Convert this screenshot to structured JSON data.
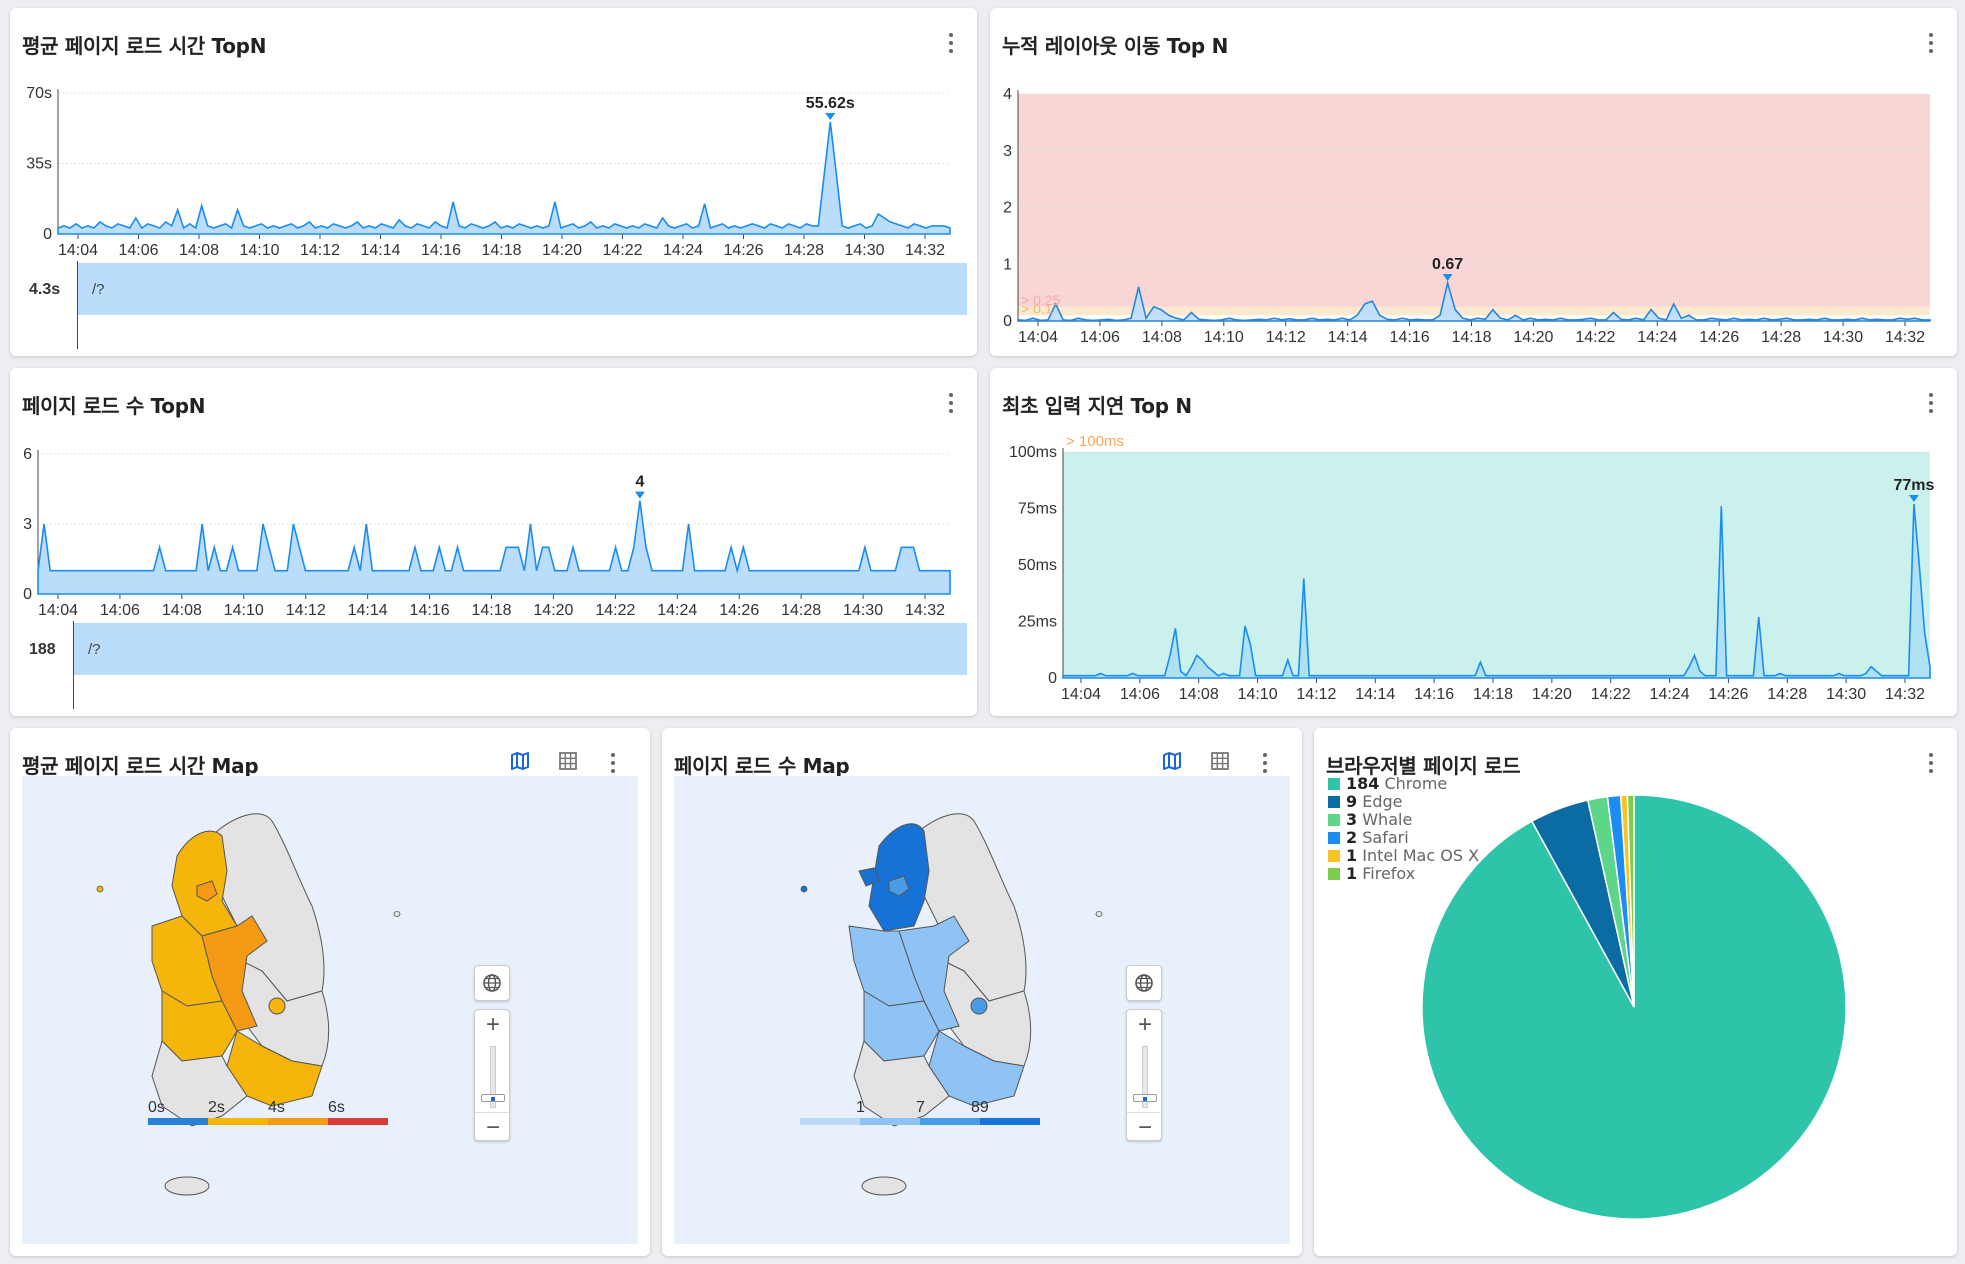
{
  "panels": {
    "avg_load": {
      "title": "평균 페이지 로드 시간 TopN",
      "y_ticks": [
        "70s",
        "35s",
        "0"
      ],
      "x_ticks": [
        "14:04",
        "14:06",
        "14:08",
        "14:10",
        "14:12",
        "14:14",
        "14:16",
        "14:18",
        "14:20",
        "14:22",
        "14:24",
        "14:26",
        "14:28",
        "14:30",
        "14:32"
      ],
      "peak_label": "55.62s",
      "bar": {
        "value": "4.3s",
        "label": "/?"
      }
    },
    "layout_shift": {
      "title": "누적 레이아웃 이동 Top N",
      "y_ticks": [
        "4",
        "3",
        "2",
        "1",
        "0"
      ],
      "x_ticks": [
        "14:04",
        "14:06",
        "14:08",
        "14:10",
        "14:12",
        "14:14",
        "14:16",
        "14:18",
        "14:20",
        "14:22",
        "14:24",
        "14:26",
        "14:28",
        "14:30",
        "14:32"
      ],
      "peak_label": "0.67",
      "threshold_labels": [
        "> 0.25",
        "> 0.1"
      ]
    },
    "page_count": {
      "title": "페이지 로드 수 TopN",
      "y_ticks": [
        "6",
        "3",
        "0"
      ],
      "x_ticks": [
        "14:04",
        "14:06",
        "14:08",
        "14:10",
        "14:12",
        "14:14",
        "14:16",
        "14:18",
        "14:20",
        "14:22",
        "14:24",
        "14:26",
        "14:28",
        "14:30",
        "14:32"
      ],
      "peak_label": "4",
      "bar": {
        "value": "188",
        "label": "/?"
      }
    },
    "input_delay": {
      "title": "최초 입력 지연 Top N",
      "y_ticks": [
        "100ms",
        "75ms",
        "50ms",
        "25ms",
        "0"
      ],
      "x_ticks": [
        "14:04",
        "14:06",
        "14:08",
        "14:10",
        "14:12",
        "14:14",
        "14:16",
        "14:18",
        "14:20",
        "14:22",
        "14:24",
        "14:26",
        "14:28",
        "14:30",
        "14:32"
      ],
      "peak_label": "77ms",
      "threshold_label": "> 100ms"
    },
    "avg_map": {
      "title": "평균 페이지 로드 시간 Map",
      "legend_ticks": [
        "0s",
        "2s",
        "4s",
        "6s"
      ],
      "legend_colors": [
        "#2a7fd6",
        "#f5b50a",
        "#f59a14",
        "#d93a3a"
      ]
    },
    "count_map": {
      "title": "페이지 로드 수 Map",
      "legend_ticks": [
        "1",
        "7",
        "89"
      ],
      "legend_colors": [
        "#bcd9f7",
        "#8ec3f4",
        "#4a9be6",
        "#1772d8"
      ]
    },
    "browser": {
      "title": "브라우저별 페이지 로드",
      "legend": [
        {
          "count": "184",
          "name": "Chrome",
          "color": "#2ec4a9"
        },
        {
          "count": "9",
          "name": "Edge",
          "color": "#0b6ca3"
        },
        {
          "count": "3",
          "name": "Whale",
          "color": "#5dd68a"
        },
        {
          "count": "2",
          "name": "Safari",
          "color": "#1b8cf0"
        },
        {
          "count": "1",
          "name": "Intel Mac OS X",
          "color": "#f7c325"
        },
        {
          "count": "1",
          "name": "Firefox",
          "color": "#7ccf4a"
        }
      ]
    }
  },
  "icons": {
    "more": "more-vert-icon",
    "map_view": "map-icon",
    "table_view": "table-icon",
    "globe": "globe-icon",
    "zoom_in": "zoom-in-icon",
    "zoom_out": "zoom-out-icon"
  },
  "zoom": {
    "plus": "+",
    "minus": "−"
  },
  "chart_data": [
    {
      "type": "area",
      "title": "평균 페이지 로드 시간 TopN",
      "ylim": [
        0,
        70
      ],
      "y_unit": "s",
      "x_range": [
        "14:03",
        "14:33"
      ],
      "series": [
        {
          "values": [
            3,
            4,
            3,
            5,
            3,
            4,
            3,
            6,
            4,
            3,
            5,
            4,
            3,
            8,
            3,
            5,
            4,
            3,
            6,
            4,
            12,
            3,
            5,
            3,
            14,
            4,
            3,
            4,
            5,
            3,
            12,
            4,
            3,
            4,
            5,
            3,
            4,
            3,
            4,
            5,
            3,
            4,
            6,
            3,
            4,
            3,
            5,
            4,
            3,
            4,
            6,
            3,
            4,
            3,
            5,
            4,
            3,
            7,
            4,
            3,
            5,
            4,
            3,
            6,
            4,
            3,
            16,
            4,
            3,
            5,
            4,
            3,
            4,
            6,
            3,
            4,
            3,
            5,
            4,
            3,
            4,
            3,
            4,
            16,
            3,
            4,
            5,
            3,
            4,
            6,
            3,
            4,
            3,
            5,
            4,
            3,
            4,
            3,
            5,
            4,
            3,
            8,
            4,
            3,
            4,
            5,
            3,
            4,
            15,
            3,
            4,
            5,
            3,
            4,
            3,
            4,
            5,
            4,
            3,
            5,
            4,
            3,
            5,
            4,
            3,
            5,
            4,
            4,
            30,
            55.62,
            30,
            4,
            3,
            4,
            5,
            3,
            4,
            10,
            8,
            6,
            5,
            4,
            3,
            5,
            4,
            3,
            4,
            4,
            4,
            3
          ]
        }
      ],
      "peak": 55.62,
      "bar": {
        "category": "/?",
        "value": 4.3
      }
    },
    {
      "type": "area",
      "title": "누적 레이아웃 이동 Top N",
      "ylim": [
        0,
        4
      ],
      "x_range": [
        "14:03",
        "14:33"
      ],
      "thresholds": [
        0.1,
        0.25
      ],
      "series": [
        {
          "values": [
            0.02,
            0.01,
            0.05,
            0.01,
            0.02,
            0.3,
            0.02,
            0.01,
            0.05,
            0.02,
            0.01,
            0.02,
            0.03,
            0.01,
            0.02,
            0.05,
            0.6,
            0.05,
            0.25,
            0.2,
            0.1,
            0.05,
            0.02,
            0.15,
            0.03,
            0.02,
            0.01,
            0.02,
            0.05,
            0.02,
            0.01,
            0.02,
            0.03,
            0.02,
            0.05,
            0.02,
            0.04,
            0.02,
            0.02,
            0.05,
            0.02,
            0.03,
            0.02,
            0.05,
            0.02,
            0.1,
            0.3,
            0.35,
            0.1,
            0.03,
            0.02,
            0.05,
            0.02,
            0.03,
            0.02,
            0.02,
            0.1,
            0.67,
            0.2,
            0.05,
            0.02,
            0.05,
            0.03,
            0.2,
            0.05,
            0.02,
            0.1,
            0.02,
            0.05,
            0.02,
            0.03,
            0.02,
            0.05,
            0.02,
            0.02,
            0.03,
            0.05,
            0.02,
            0.02,
            0.15,
            0.03,
            0.02,
            0.05,
            0.02,
            0.2,
            0.05,
            0.02,
            0.3,
            0.05,
            0.1,
            0.02,
            0.02,
            0.05,
            0.03,
            0.02,
            0.05,
            0.02,
            0.03,
            0.02,
            0.05,
            0.02,
            0.03,
            0.05,
            0.02,
            0.02,
            0.03,
            0.02,
            0.05,
            0.02,
            0.02,
            0.03,
            0.02,
            0.05,
            0.02,
            0.03,
            0.02,
            0.02,
            0.05,
            0.03,
            0.05,
            0.02,
            0.02
          ]
        }
      ],
      "peak": 0.67
    },
    {
      "type": "area",
      "title": "페이지 로드 수 TopN",
      "ylim": [
        0,
        6
      ],
      "x_range": [
        "14:03",
        "14:33"
      ],
      "series": [
        {
          "values": [
            1,
            3,
            1,
            1,
            1,
            1,
            1,
            1,
            1,
            1,
            1,
            1,
            1,
            1,
            1,
            1,
            1,
            1,
            1,
            1,
            2,
            1,
            1,
            1,
            1,
            1,
            1,
            3,
            1,
            2,
            1,
            1,
            2,
            1,
            1,
            1,
            1,
            3,
            2,
            1,
            1,
            1,
            3,
            2,
            1,
            1,
            1,
            1,
            1,
            1,
            1,
            1,
            2,
            1,
            3,
            1,
            1,
            1,
            1,
            1,
            1,
            1,
            2,
            1,
            1,
            1,
            2,
            1,
            1,
            2,
            1,
            1,
            1,
            1,
            1,
            1,
            1,
            2,
            2,
            2,
            1,
            3,
            1,
            2,
            2,
            1,
            1,
            1,
            2,
            1,
            1,
            1,
            1,
            1,
            1,
            2,
            1,
            1,
            2,
            4,
            2,
            1,
            1,
            1,
            1,
            1,
            1,
            3,
            1,
            1,
            1,
            1,
            1,
            1,
            2,
            1,
            2,
            1,
            1,
            1,
            1,
            1,
            1,
            1,
            1,
            1,
            1,
            1,
            1,
            1,
            1,
            1,
            1,
            1,
            1,
            1,
            2,
            1,
            1,
            1,
            1,
            1,
            2,
            2,
            2,
            1,
            1,
            1,
            1,
            1,
            1
          ]
        }
      ],
      "peak": 4,
      "bar": {
        "category": "/?",
        "value": 188
      }
    },
    {
      "type": "area",
      "title": "최초 입력 지연 Top N",
      "ylim": [
        0,
        100
      ],
      "y_unit": "ms",
      "x_range": [
        "14:03",
        "14:33"
      ],
      "thresholds": [
        100
      ],
      "series": [
        {
          "values": [
            1,
            1,
            1,
            1,
            1,
            1,
            1,
            2,
            1,
            1,
            1,
            1,
            1,
            2,
            1,
            1,
            1,
            1,
            1,
            1,
            10,
            22,
            3,
            1,
            5,
            10,
            8,
            5,
            3,
            1,
            2,
            1,
            1,
            1,
            23,
            15,
            1,
            1,
            1,
            1,
            1,
            1,
            8,
            1,
            1,
            44,
            1,
            1,
            1,
            1,
            1,
            1,
            1,
            1,
            1,
            1,
            1,
            1,
            1,
            1,
            1,
            1,
            1,
            1,
            1,
            1,
            1,
            1,
            1,
            1,
            1,
            1,
            1,
            1,
            1,
            1,
            1,
            1,
            7,
            1,
            1,
            1,
            1,
            1,
            1,
            1,
            1,
            1,
            1,
            1,
            1,
            1,
            1,
            1,
            1,
            1,
            1,
            1,
            1,
            1,
            1,
            1,
            1,
            1,
            1,
            1,
            1,
            1,
            1,
            1,
            1,
            1,
            1,
            1,
            1,
            1,
            1,
            5,
            10,
            3,
            1,
            1,
            1,
            76,
            1,
            1,
            1,
            1,
            1,
            1,
            27,
            1,
            1,
            1,
            2,
            1,
            1,
            1,
            1,
            1,
            1,
            1,
            1,
            1,
            1,
            2,
            1,
            1,
            1,
            1,
            2,
            5,
            3,
            1,
            1,
            1,
            1,
            1,
            1,
            77,
            50,
            20,
            5
          ]
        }
      ],
      "peak": 77
    },
    {
      "type": "pie",
      "title": "브라우저별 페이지 로드",
      "categories": [
        "Chrome",
        "Edge",
        "Whale",
        "Safari",
        "Intel Mac OS X",
        "Firefox"
      ],
      "values": [
        184,
        9,
        3,
        2,
        1,
        1
      ]
    }
  ]
}
